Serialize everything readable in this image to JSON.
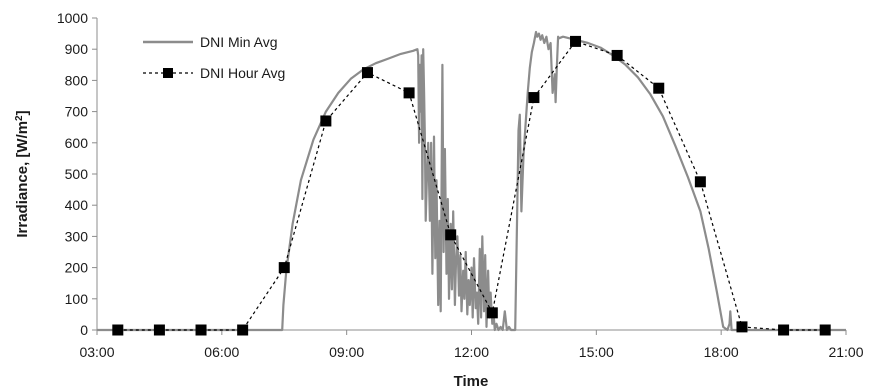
{
  "chart_data": {
    "type": "line",
    "title": "",
    "xlabel": "Time",
    "ylabel": "Irradiance, [W/m",
    "ylabel_sup": "2",
    "ylabel_close": "]",
    "xlim": [
      3,
      21
    ],
    "ylim": [
      0,
      1000
    ],
    "x_ticks": [
      3,
      6,
      9,
      12,
      15,
      18,
      21
    ],
    "x_tick_labels": [
      "03:00",
      "06:00",
      "09:00",
      "12:00",
      "15:00",
      "18:00",
      "21:00"
    ],
    "y_ticks": [
      0,
      100,
      200,
      300,
      400,
      500,
      600,
      700,
      800,
      900,
      1000
    ],
    "y_tick_labels": [
      "0",
      "100",
      "200",
      "300",
      "400",
      "500",
      "600",
      "700",
      "800",
      "900",
      "1000"
    ],
    "grid": false,
    "legend_position": "top-left",
    "series": [
      {
        "name": "DNI Min Avg",
        "style": "solid",
        "color": "#8c8c8c",
        "x": [
          3.0,
          7.45,
          7.48,
          7.55,
          7.7,
          7.9,
          8.2,
          8.5,
          8.8,
          9.1,
          9.4,
          9.7,
          10.0,
          10.3,
          10.6,
          10.7,
          10.72,
          10.74,
          10.76,
          10.78,
          10.8,
          10.82,
          10.84,
          10.86,
          10.88,
          10.9,
          10.93,
          10.96,
          11.0,
          11.03,
          11.06,
          11.1,
          11.13,
          11.16,
          11.2,
          11.23,
          11.26,
          11.3,
          11.33,
          11.36,
          11.4,
          11.43,
          11.46,
          11.5,
          11.53,
          11.56,
          11.6,
          11.63,
          11.66,
          11.7,
          11.73,
          11.76,
          11.8,
          11.83,
          11.86,
          11.9,
          11.93,
          11.96,
          12.0,
          12.03,
          12.06,
          12.1,
          12.13,
          12.16,
          12.2,
          12.23,
          12.26,
          12.3,
          12.33,
          12.36,
          12.4,
          12.43,
          12.46,
          12.5,
          12.53,
          12.56,
          12.6,
          12.65,
          12.7,
          12.75,
          12.8,
          12.85,
          12.9,
          12.95,
          13.0,
          13.05,
          13.1,
          13.13,
          13.16,
          13.2,
          13.25,
          13.3,
          13.35,
          13.4,
          13.45,
          13.5,
          13.55,
          13.58,
          13.62,
          13.66,
          13.7,
          13.75,
          13.8,
          13.85,
          13.9,
          13.95,
          14.0,
          14.02,
          14.05,
          14.08,
          14.1,
          14.2,
          14.5,
          14.8,
          15.1,
          15.4,
          15.7,
          16.0,
          16.3,
          16.6,
          16.9,
          17.2,
          17.5,
          17.7,
          17.9,
          18.05,
          18.15,
          18.2,
          18.22,
          18.25,
          18.3,
          18.35,
          21.0
        ],
        "y": [
          0,
          0,
          80,
          190,
          340,
          480,
          610,
          700,
          760,
          805,
          835,
          855,
          870,
          885,
          895,
          900,
          880,
          600,
          850,
          700,
          880,
          420,
          900,
          760,
          610,
          350,
          500,
          600,
          350,
          600,
          180,
          620,
          230,
          480,
          80,
          350,
          60,
          850,
          250,
          580,
          180,
          420,
          100,
          340,
          130,
          380,
          80,
          230,
          300,
          110,
          240,
          60,
          190,
          100,
          250,
          50,
          160,
          80,
          200,
          40,
          230,
          70,
          120,
          20,
          260,
          40,
          300,
          60,
          240,
          10,
          190,
          40,
          120,
          20,
          50,
          0,
          20,
          0,
          10,
          0,
          60,
          0,
          10,
          0,
          0,
          0,
          400,
          640,
          690,
          380,
          560,
          660,
          760,
          840,
          890,
          920,
          955,
          940,
          950,
          930,
          945,
          920,
          940,
          900,
          920,
          760,
          820,
          730,
          840,
          940,
          935,
          940,
          930,
          920,
          905,
          880,
          850,
          810,
          755,
          685,
          590,
          490,
          380,
          260,
          120,
          10,
          0,
          20,
          60,
          0,
          0,
          0,
          0
        ]
      },
      {
        "name": "DNI Hour Avg",
        "style": "dashed",
        "marker": "square",
        "color": "#000000",
        "x": [
          3.5,
          4.5,
          5.5,
          6.5,
          7.5,
          8.5,
          9.5,
          10.5,
          11.5,
          12.5,
          13.5,
          14.5,
          15.5,
          16.5,
          17.5,
          18.5,
          19.5,
          20.5
        ],
        "y": [
          0,
          0,
          0,
          0,
          200,
          670,
          825,
          760,
          305,
          55,
          745,
          925,
          880,
          775,
          475,
          10,
          0,
          0
        ]
      }
    ]
  }
}
